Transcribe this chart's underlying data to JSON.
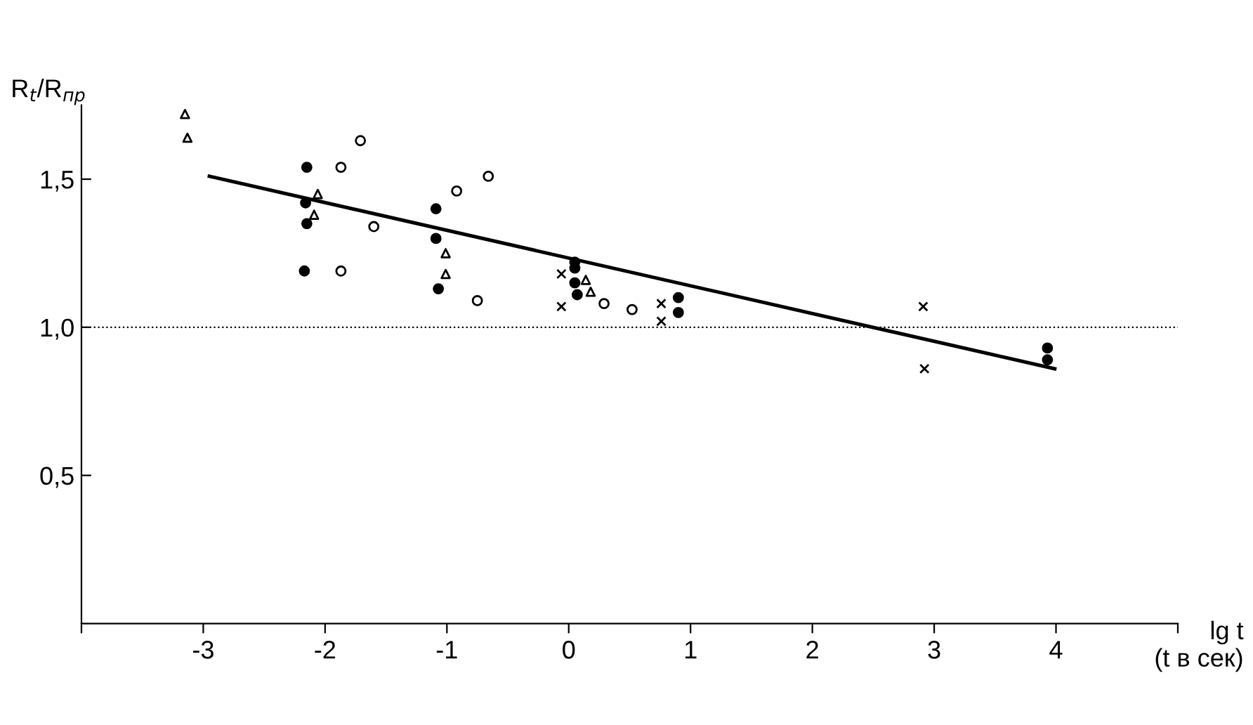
{
  "chart_data": {
    "type": "scatter",
    "xlabel": "lg t\n(t в сек)",
    "ylabel": "R$_{t}$/R$_{пр}$",
    "xlim": [
      -4,
      5
    ],
    "ylim": [
      0,
      1.75
    ],
    "xticks": [
      {
        "value": -4,
        "label": null
      },
      -3,
      -2,
      -1,
      0,
      1,
      2,
      3,
      4,
      {
        "value": 5,
        "label": null
      }
    ],
    "yticks": [
      {
        "value": 0.5,
        "label": "0,5"
      },
      {
        "value": 1.0,
        "label": "1,0"
      },
      {
        "value": 1.5,
        "label": "1,5"
      }
    ],
    "grid": false,
    "legend": false,
    "ref_lines": [
      {
        "axis": "y",
        "value": 1.0,
        "color": "#000000",
        "line_style": "dotted"
      }
    ],
    "series": [
      {
        "marker": "circle",
        "color": "#000000",
        "x": [
          -2.15,
          -2.16,
          -2.15,
          -2.17,
          -1.09,
          -1.09,
          -1.07,
          0.05,
          0.05,
          0.05,
          0.07,
          0.9,
          0.9,
          3.93,
          3.93
        ],
        "values": [
          1.54,
          1.42,
          1.35,
          1.19,
          1.4,
          1.3,
          1.13,
          1.22,
          1.2,
          1.15,
          1.11,
          1.1,
          1.05,
          0.93,
          0.89
        ]
      },
      {
        "marker": "circle",
        "color": "#ffffff",
        "x": [
          -1.87,
          -1.71,
          -1.6,
          -1.87,
          -0.92,
          -0.66,
          -0.75,
          0.29,
          0.52
        ],
        "values": [
          1.54,
          1.63,
          1.34,
          1.19,
          1.46,
          1.51,
          1.09,
          1.08,
          1.06
        ]
      },
      {
        "marker": "triangle",
        "color": "#ffffff",
        "x": [
          -3.15,
          -3.13,
          -2.06,
          -2.09,
          -1.01,
          -1.01,
          0.14,
          0.18
        ],
        "values": [
          1.72,
          1.64,
          1.45,
          1.38,
          1.25,
          1.18,
          1.16,
          1.12
        ]
      },
      {
        "marker": "cross",
        "color": "#000000",
        "x": [
          -0.06,
          -0.06,
          0.76,
          0.76,
          2.91,
          2.92
        ],
        "values": [
          1.18,
          1.07,
          1.08,
          1.02,
          1.07,
          0.86
        ]
      },
      {
        "type": "line",
        "marker": "none",
        "line_style": "solid",
        "color": "#000000",
        "x": [
          -2.95,
          3.99
        ],
        "values": [
          1.51,
          0.86
        ]
      }
    ]
  }
}
